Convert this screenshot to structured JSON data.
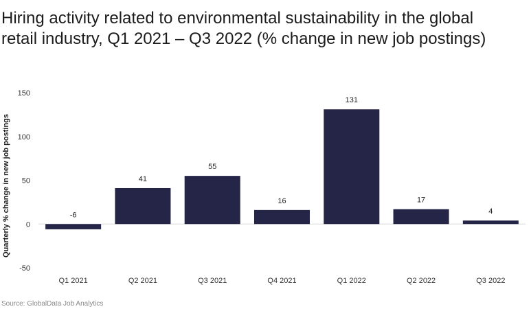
{
  "chart_data": {
    "type": "bar",
    "title": "Hiring activity related to environmental sustainability in the global retail industry, Q1 2021 – Q3 2022 (% change in new job postings)",
    "xlabel": "",
    "ylabel": "Quarterly % change in new job postings",
    "categories": [
      "Q1 2021",
      "Q2 2021",
      "Q3 2021",
      "Q4 2021",
      "Q1 2022",
      "Q2 2022",
      "Q3 2022"
    ],
    "values": [
      -6,
      41,
      55,
      16,
      131,
      17,
      4
    ],
    "ylim": [
      -50,
      150
    ],
    "yticks": [
      -50,
      0,
      50,
      100,
      150
    ],
    "grid": false,
    "bar_color": "#252548",
    "data_labels": true
  },
  "source": "Source: GlobalData Job Analytics"
}
